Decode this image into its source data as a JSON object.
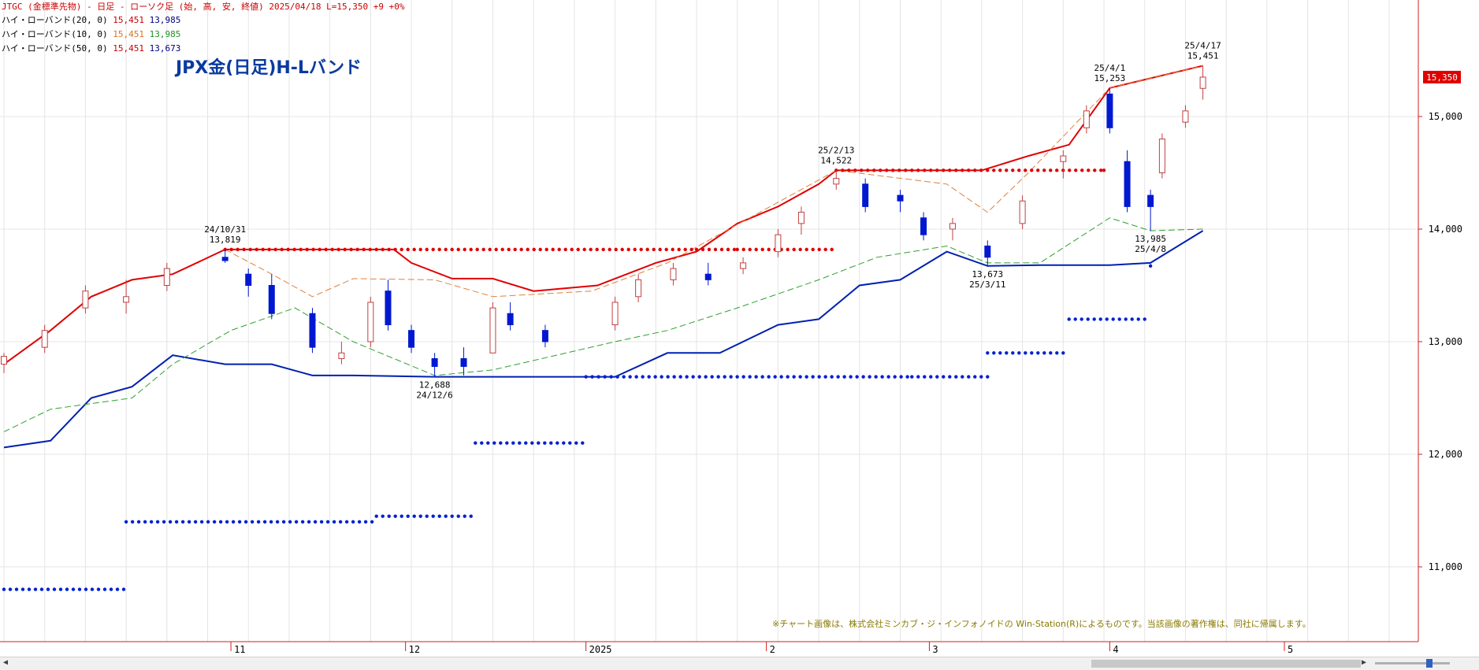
{
  "header": {
    "symbol_line": "JTGC (金標準先物) - 日足 - ローソク足 (始, 高, 安, 終値)  2025/04/18  L=15,350  +9  +0%",
    "legends": [
      {
        "label": "ハイ・ローバンド(20, 0)",
        "high": "15,451",
        "low": "13,985",
        "color_high": "#cc0000",
        "color_low": "#000080"
      },
      {
        "label": "ハイ・ローバンド(10, 0)",
        "high": "15,451",
        "low": "13,985",
        "color_high": "#e07020",
        "color_low": "#209020"
      },
      {
        "label": "ハイ・ローバンド(50, 0)",
        "high": "15,451",
        "low": "13,673",
        "color_high": "#cc0000",
        "color_low": "#0020c0"
      }
    ]
  },
  "title": "JPX金(日足)H-Lバンド",
  "notice": "※チャート画像は、株式会社ミンカブ・ジ・インフォノイドの Win-Station(R)によるものです。当該画像の著作権は、同社に帰属します。",
  "price_label": "15,350",
  "colors": {
    "band20_high": "#e00000",
    "band20_low": "#0020b0",
    "band10_high": "#e08040",
    "band10_low": "#30a030",
    "band50_high": "#e00000",
    "band50_low": "#0020d0",
    "candle_up": "#c04040",
    "candle_down": "#0018d0",
    "axis": "#cc2020",
    "price_tag": "#e00000"
  },
  "chart_data": {
    "type": "candlestick",
    "y_axis": {
      "ticks": [
        "11,000",
        "12,000",
        "13,000",
        "14,000",
        "15,000"
      ],
      "tick_values": [
        11000,
        12000,
        13000,
        14000,
        15000
      ],
      "ylim": [
        10300,
        16000
      ]
    },
    "x_axis": {
      "labels": [
        "11",
        "12",
        "2025",
        "2",
        "3",
        "4",
        "5"
      ],
      "label_dates": [
        "2024-11-01",
        "2024-12-01",
        "2025-01-01",
        "2025-02-01",
        "2025-03-01",
        "2025-04-01",
        "2025-05-01"
      ]
    },
    "annotations": [
      {
        "text": [
          "24/10/31",
          "13,819"
        ],
        "x": "2024-10-31",
        "y": 13819,
        "pos": "above"
      },
      {
        "text": [
          "12,688",
          "24/12/6"
        ],
        "x": "2024-12-06",
        "y": 12688,
        "pos": "below"
      },
      {
        "text": [
          "25/2/13",
          "14,522"
        ],
        "x": "2025-02-13",
        "y": 14522,
        "pos": "above"
      },
      {
        "text": [
          "13,673",
          "25/3/11"
        ],
        "x": "2025-03-11",
        "y": 13673,
        "pos": "below"
      },
      {
        "text": [
          "25/4/1",
          "15,253"
        ],
        "x": "2025-04-01",
        "y": 15253,
        "pos": "above"
      },
      {
        "text": [
          "13,985",
          "25/4/8"
        ],
        "x": "2025-04-08",
        "y": 13985,
        "pos": "below"
      },
      {
        "text": [
          "25/4/17",
          "15,451"
        ],
        "x": "2025-04-17",
        "y": 15451,
        "pos": "above"
      }
    ],
    "last_price": 15350,
    "series": [
      {
        "name": "ハイ・ローバンド(20, 0) 高値",
        "x": [
          "2024-09-23",
          "2024-10-01",
          "2024-10-08",
          "2024-10-15",
          "2024-10-22",
          "2024-10-31",
          "2024-11-15",
          "2024-11-29",
          "2024-12-02",
          "2024-12-09",
          "2024-12-16",
          "2024-12-23",
          "2025-01-03",
          "2025-01-13",
          "2025-01-20",
          "2025-01-27",
          "2025-02-03",
          "2025-02-10",
          "2025-02-13",
          "2025-02-28",
          "2025-03-10",
          "2025-03-18",
          "2025-03-25",
          "2025-04-01",
          "2025-04-17"
        ],
        "values": [
          12800,
          13100,
          13400,
          13550,
          13600,
          13819,
          13819,
          13819,
          13700,
          13560,
          13560,
          13450,
          13500,
          13700,
          13800,
          14050,
          14200,
          14400,
          14522,
          14522,
          14522,
          14650,
          14750,
          15253,
          15451
        ]
      },
      {
        "name": "ハイ・ローバンド(20, 0) 安値",
        "x": [
          "2024-09-23",
          "2024-10-01",
          "2024-10-08",
          "2024-10-15",
          "2024-10-22",
          "2024-10-31",
          "2024-11-08",
          "2024-11-15",
          "2024-11-22",
          "2024-12-06",
          "2024-12-20",
          "2025-01-06",
          "2025-01-15",
          "2025-01-24",
          "2025-02-03",
          "2025-02-10",
          "2025-02-17",
          "2025-02-24",
          "2025-03-04",
          "2025-03-11",
          "2025-03-20",
          "2025-04-01",
          "2025-04-08",
          "2025-04-17"
        ],
        "values": [
          12060,
          12120,
          12500,
          12600,
          12880,
          12800,
          12800,
          12700,
          12700,
          12688,
          12688,
          12688,
          12900,
          12900,
          13150,
          13200,
          13500,
          13550,
          13800,
          13673,
          13680,
          13680,
          13700,
          13985
        ]
      },
      {
        "name": "ハイ・ローバンド(10, 0) 高値",
        "x": [
          "2024-10-31",
          "2024-11-08",
          "2024-11-15",
          "2024-11-22",
          "2024-12-06",
          "2024-12-16",
          "2025-01-02",
          "2025-01-15",
          "2025-02-13",
          "2025-03-04",
          "2025-03-11",
          "2025-03-18",
          "2025-04-01",
          "2025-04-17"
        ],
        "values": [
          13819,
          13600,
          13400,
          13560,
          13550,
          13400,
          13450,
          13700,
          14522,
          14400,
          14150,
          14500,
          15253,
          15451
        ]
      },
      {
        "name": "ハイ・ローバンド(10, 0) 安値",
        "x": [
          "2024-09-23",
          "2024-10-01",
          "2024-10-15",
          "2024-10-22",
          "2024-11-01",
          "2024-11-12",
          "2024-11-22",
          "2024-12-06",
          "2024-12-16",
          "2025-01-06",
          "2025-01-15",
          "2025-01-27",
          "2025-02-10",
          "2025-02-20",
          "2025-03-04",
          "2025-03-11",
          "2025-03-20",
          "2025-04-01",
          "2025-04-08",
          "2025-04-17"
        ],
        "values": [
          12200,
          12400,
          12500,
          12800,
          13100,
          13300,
          13000,
          12700,
          12750,
          13000,
          13100,
          13300,
          13550,
          13750,
          13850,
          13700,
          13700,
          14100,
          13985,
          14000
        ]
      },
      {
        "name": "ハイ・ローバンド(50, 0) 高値",
        "x": [
          "2024-10-31",
          "2025-01-20",
          "2025-01-27",
          "2025-02-13",
          "2025-03-31"
        ],
        "values": [
          13819,
          13819,
          13819,
          14522,
          14522
        ]
      },
      {
        "name": "ハイ・ローバンド(50, 0) 安値",
        "x": [
          "2024-09-23",
          "2024-10-14",
          "2024-11-26",
          "2024-12-13",
          "2025-01-01",
          "2025-02-26",
          "2025-03-11",
          "2025-03-25",
          "2025-04-08"
        ],
        "values": [
          10800,
          11400,
          11450,
          12100,
          12688,
          12688,
          12900,
          13200,
          13673
        ]
      }
    ],
    "candles": [
      [
        "2024-09-23",
        12800,
        12900,
        12720,
        12870
      ],
      [
        "2024-09-30",
        12950,
        13150,
        12900,
        13100
      ],
      [
        "2024-10-07",
        13300,
        13500,
        13250,
        13450
      ],
      [
        "2024-10-14",
        13350,
        13550,
        13250,
        13400
      ],
      [
        "2024-10-21",
        13500,
        13700,
        13450,
        13650
      ],
      [
        "2024-10-31",
        13750,
        13819,
        13700,
        13720
      ],
      [
        "2024-11-04",
        13600,
        13650,
        13400,
        13500
      ],
      [
        "2024-11-08",
        13500,
        13600,
        13200,
        13250
      ],
      [
        "2024-11-15",
        13250,
        13300,
        12900,
        12950
      ],
      [
        "2024-11-20",
        12850,
        13000,
        12800,
        12900
      ],
      [
        "2024-11-25",
        13000,
        13400,
        12950,
        13350
      ],
      [
        "2024-11-28",
        13450,
        13550,
        13100,
        13150
      ],
      [
        "2024-12-02",
        13100,
        13150,
        12900,
        12950
      ],
      [
        "2024-12-06",
        12850,
        12900,
        12688,
        12780
      ],
      [
        "2024-12-11",
        12850,
        12950,
        12700,
        12780
      ],
      [
        "2024-12-16",
        12900,
        13350,
        12900,
        13300
      ],
      [
        "2024-12-19",
        13250,
        13350,
        13100,
        13150
      ],
      [
        "2024-12-25",
        13100,
        13150,
        12950,
        13000
      ],
      [
        "2025-01-06",
        13150,
        13400,
        13100,
        13350
      ],
      [
        "2025-01-10",
        13400,
        13600,
        13350,
        13550
      ],
      [
        "2025-01-16",
        13550,
        13700,
        13500,
        13650
      ],
      [
        "2025-01-22",
        13600,
        13700,
        13500,
        13550
      ],
      [
        "2025-01-28",
        13650,
        13750,
        13600,
        13700
      ],
      [
        "2025-02-03",
        13800,
        14000,
        13750,
        13950
      ],
      [
        "2025-02-07",
        14050,
        14200,
        13950,
        14150
      ],
      [
        "2025-02-13",
        14400,
        14522,
        14350,
        14450
      ],
      [
        "2025-02-18",
        14400,
        14450,
        14150,
        14200
      ],
      [
        "2025-02-24",
        14300,
        14350,
        14150,
        14250
      ],
      [
        "2025-02-28",
        14100,
        14150,
        13900,
        13950
      ],
      [
        "2025-03-05",
        14000,
        14100,
        13900,
        14050
      ],
      [
        "2025-03-11",
        13850,
        13900,
        13673,
        13750
      ],
      [
        "2025-03-17",
        14050,
        14300,
        14000,
        14250
      ],
      [
        "2025-03-24",
        14600,
        14700,
        14450,
        14650
      ],
      [
        "2025-03-28",
        14900,
        15100,
        14850,
        15050
      ],
      [
        "2025-04-01",
        15200,
        15253,
        14850,
        14900
      ],
      [
        "2025-04-04",
        14600,
        14700,
        14150,
        14200
      ],
      [
        "2025-04-08",
        14300,
        14350,
        13985,
        14200
      ],
      [
        "2025-04-10",
        14500,
        14850,
        14450,
        14800
      ],
      [
        "2025-04-14",
        14950,
        15100,
        14900,
        15050
      ],
      [
        "2025-04-17",
        15250,
        15451,
        15150,
        15350
      ]
    ]
  }
}
